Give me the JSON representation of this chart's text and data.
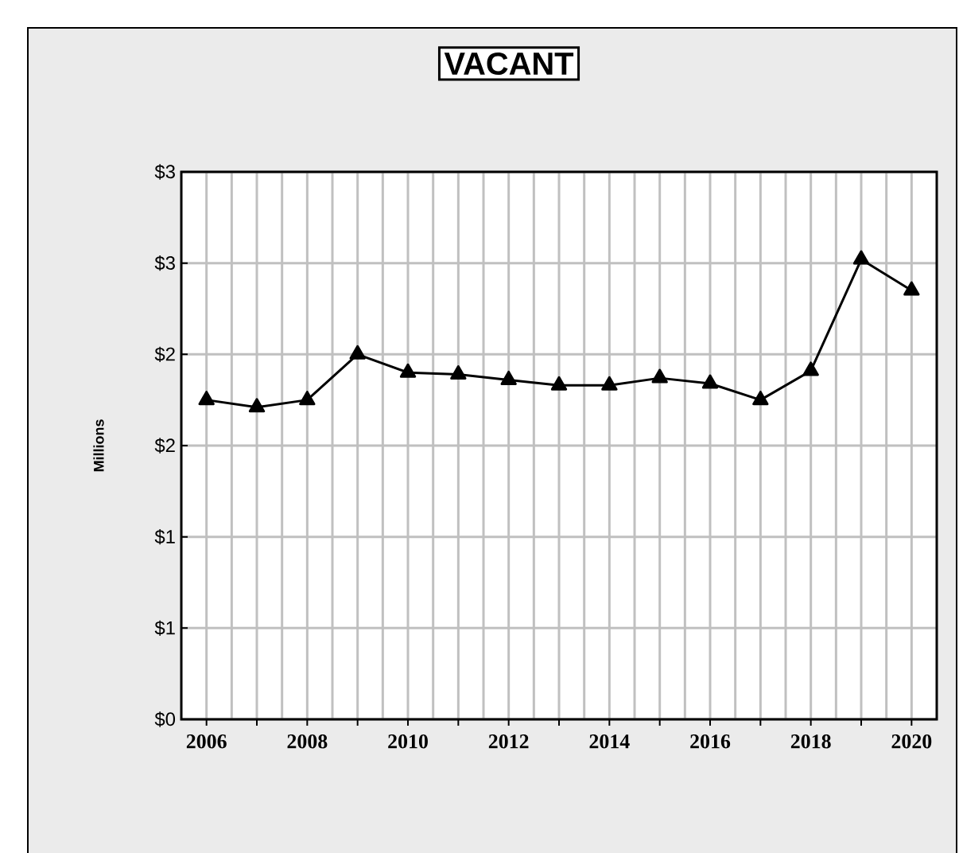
{
  "chart_data": {
    "type": "line",
    "title": "VACANT",
    "ylabel": "Millions",
    "x": [
      2006,
      2007,
      2008,
      2009,
      2010,
      2011,
      2012,
      2013,
      2014,
      2015,
      2016,
      2017,
      2018,
      2019,
      2020
    ],
    "series": [
      {
        "color": "#000000",
        "values": [
          1.75,
          1.71,
          1.75,
          2.0,
          1.9,
          1.89,
          1.86,
          1.83,
          1.83,
          1.87,
          1.84,
          1.75,
          1.91,
          2.52,
          2.35
        ]
      }
    ],
    "xlim": [
      2005.5,
      2020.5
    ],
    "xticks": [
      2006,
      {
        "value": 2007,
        "label": null
      },
      2008,
      {
        "value": 2009,
        "label": null
      },
      2010,
      {
        "value": 2011,
        "label": null
      },
      2012,
      {
        "value": 2013,
        "label": null
      },
      2014,
      {
        "value": 2015,
        "label": null
      },
      2016,
      {
        "value": 2017,
        "label": null
      },
      2018,
      {
        "value": 2019,
        "label": null
      },
      2020
    ],
    "ylim": [
      0,
      3
    ],
    "yticks": [
      {
        "value": 0,
        "label": "$0"
      },
      {
        "value": 0.5,
        "label": "$1"
      },
      {
        "value": 1,
        "label": "$1"
      },
      {
        "value": 1.5,
        "label": "$2"
      },
      {
        "value": 2,
        "label": "$2"
      },
      {
        "value": 2.5,
        "label": "$3"
      },
      {
        "value": 3,
        "label": "$3"
      }
    ],
    "grid": true,
    "marker": "triangle",
    "line_style": "solid"
  }
}
